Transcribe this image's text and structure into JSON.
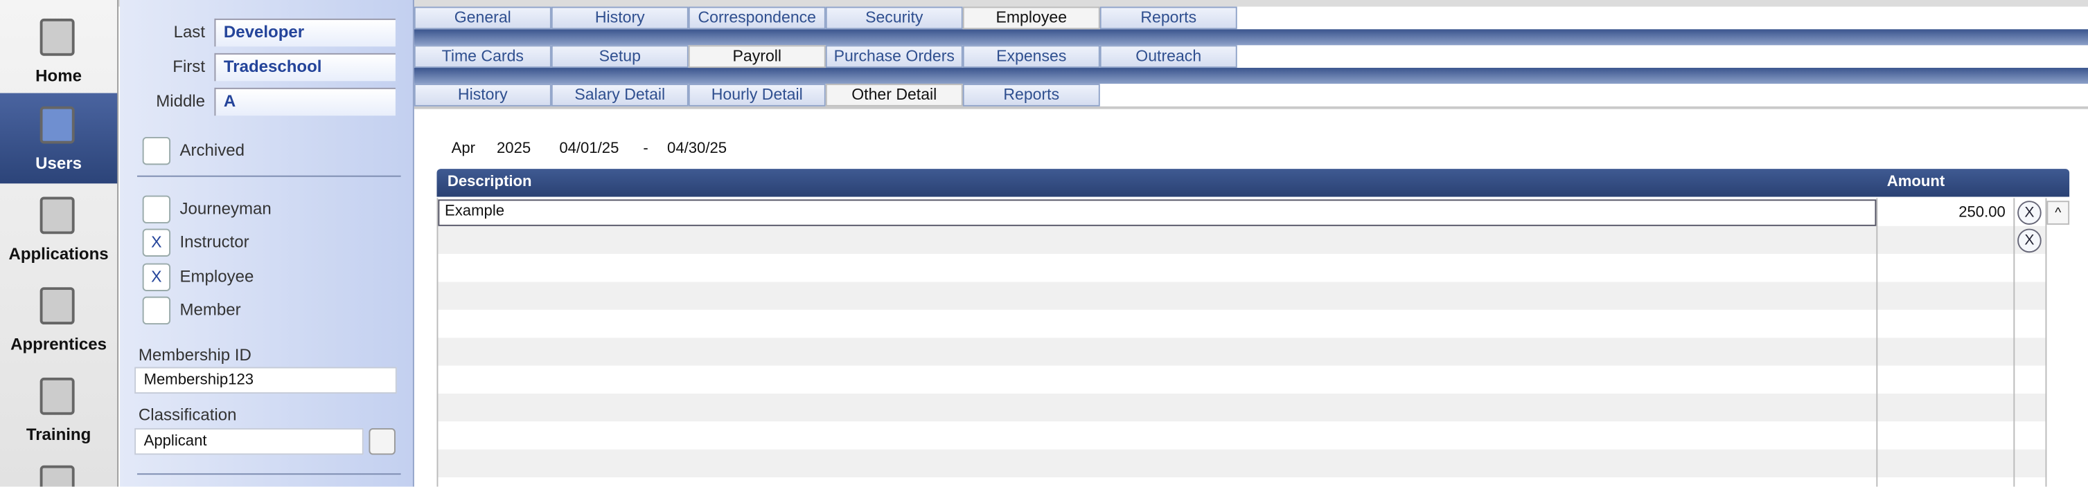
{
  "nav": [
    {
      "label": "Home"
    },
    {
      "label": "Users",
      "selected": true
    },
    {
      "label": "Applications"
    },
    {
      "label": "Apprentices"
    },
    {
      "label": "Training"
    }
  ],
  "user": {
    "fields": [
      {
        "label": "Last",
        "value": "Developer"
      },
      {
        "label": "First",
        "value": "Tradeschool"
      },
      {
        "label": "Middle",
        "value": "A"
      }
    ],
    "archived": {
      "label": "Archived"
    },
    "roles": [
      {
        "label": "Journeyman"
      },
      {
        "label": "Instructor",
        "mark": "X"
      },
      {
        "label": "Employee",
        "mark": "X"
      },
      {
        "label": "Member"
      }
    ],
    "membership_id": {
      "label": "Membership ID",
      "value": "Membership123"
    },
    "classification": {
      "label": "Classification",
      "value": "Applicant"
    }
  },
  "tabs": [
    {
      "items": [
        "General",
        "History",
        "Correspondence",
        "Security",
        "Employee",
        "Reports"
      ],
      "active": 4
    },
    {
      "items": [
        "Time Cards",
        "Setup",
        "Payroll",
        "Purchase Orders",
        "Expenses",
        "Outreach"
      ],
      "active": 2
    },
    {
      "items": [
        "History",
        "Salary Detail",
        "Hourly Detail",
        "Other Detail",
        "Reports"
      ],
      "active": 3
    }
  ],
  "period": {
    "month": "Apr",
    "year": "2025",
    "start": "04/01/25",
    "separator": "-",
    "end": "04/30/25"
  },
  "table": {
    "columns": [
      "Description",
      "Amount"
    ],
    "rows": [
      {
        "description": "Example",
        "amount": "250.00"
      }
    ],
    "delete_buttons": [
      "X",
      "X"
    ],
    "scroll_up": "^"
  }
}
